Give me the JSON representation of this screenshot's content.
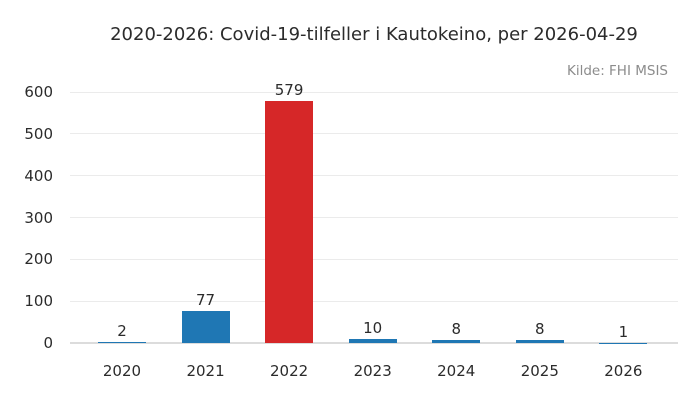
{
  "chart_data": {
    "type": "bar",
    "title": "2020-2026: Covid-19-tilfeller i Kautokeino, per 2026-04-29",
    "source": "Kilde: FHI MSIS",
    "categories": [
      "2020",
      "2021",
      "2022",
      "2023",
      "2024",
      "2025",
      "2026"
    ],
    "values": [
      2,
      77,
      579,
      10,
      8,
      8,
      1
    ],
    "value_labels": [
      "2",
      "77",
      "579",
      "10",
      "8",
      "8",
      "1"
    ],
    "bar_colors": [
      "#1f77b4",
      "#1f77b4",
      "#d62728",
      "#1f77b4",
      "#1f77b4",
      "#1f77b4",
      "#1f77b4"
    ],
    "xlabel": "",
    "ylabel": "",
    "ylim": [
      0,
      600
    ],
    "yticks": [
      0,
      100,
      200,
      300,
      400,
      500,
      600
    ],
    "grid": true,
    "legend": "none",
    "colors": {
      "default_bar": "#1f77b4",
      "highlight_bar": "#d62728",
      "gridline": "#ebebeb",
      "axis_line": "#dcdcdc",
      "text": "#2b2b2b",
      "source_text": "#8c8c8c",
      "background": "#ffffff"
    }
  }
}
